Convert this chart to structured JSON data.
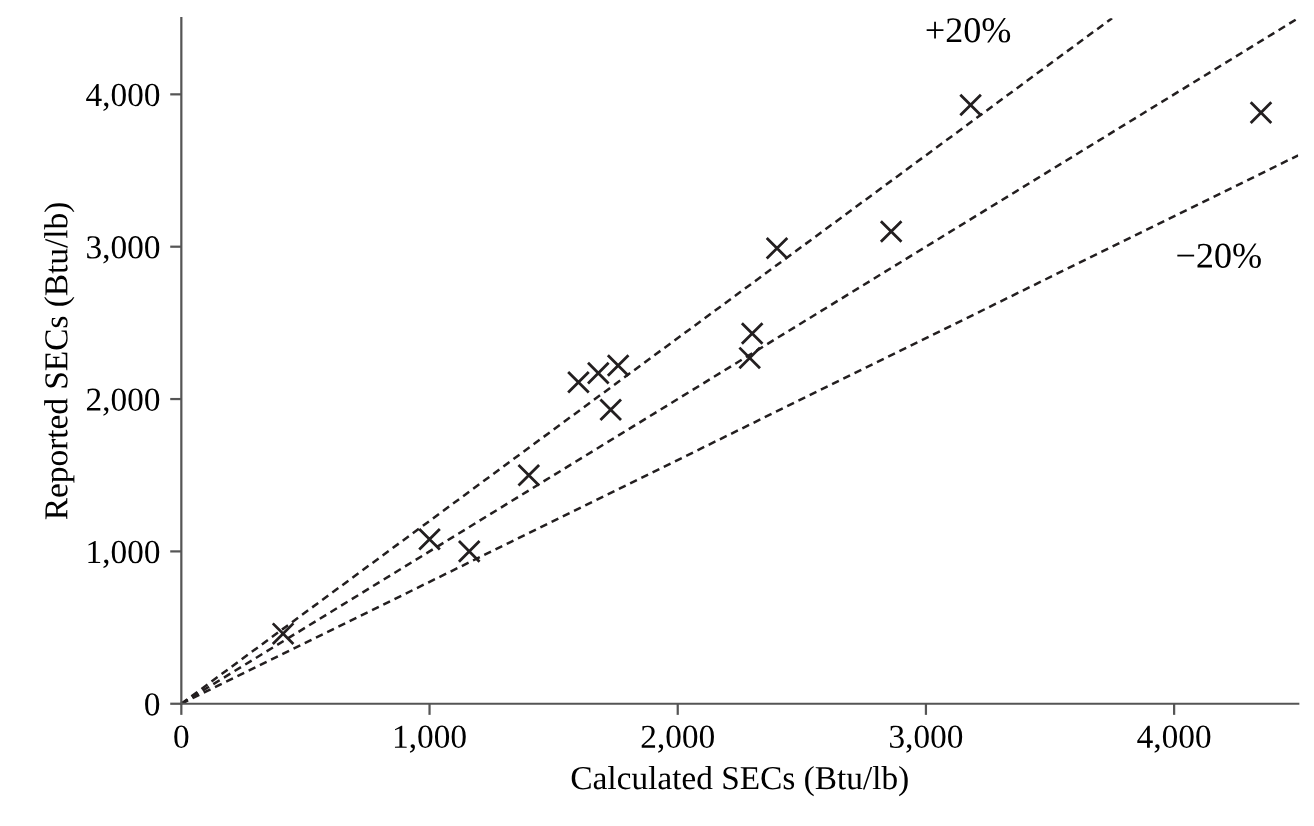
{
  "chart_data": {
    "type": "scatter",
    "xlabel": "Calculated SECs (Btu/lb)",
    "ylabel": "Reported SECs (Btu/lb)",
    "xlim": [
      0,
      4500
    ],
    "ylim": [
      0,
      4500
    ],
    "xticks": [
      {
        "value": 0,
        "label": "0"
      },
      {
        "value": 1000,
        "label": "1,000"
      },
      {
        "value": 2000,
        "label": "2,000"
      },
      {
        "value": 3000,
        "label": "3,000"
      },
      {
        "value": 4000,
        "label": "4,000"
      }
    ],
    "yticks": [
      {
        "value": 0,
        "label": "0"
      },
      {
        "value": 1000,
        "label": "1,000"
      },
      {
        "value": 2000,
        "label": "2,000"
      },
      {
        "value": 3000,
        "label": "3,000"
      },
      {
        "value": 4000,
        "label": "4,000"
      }
    ],
    "grid": false,
    "series": [
      {
        "marker": "cross",
        "color": "#231f20",
        "x": [
          410,
          1000,
          1160,
          1400,
          1600,
          1680,
          1760,
          1730,
          2300,
          2290,
          2400,
          2860,
          3180,
          4350
        ],
        "values": [
          460,
          1080,
          1000,
          1500,
          2110,
          2170,
          2220,
          1930,
          2430,
          2270,
          2990,
          3100,
          3930,
          3880
        ]
      },
      {
        "type": "line",
        "name": "+20%",
        "line_style": "dashed",
        "marker": "none",
        "color": "#231f20",
        "x": [
          0,
          3750
        ],
        "values": [
          0,
          4500
        ]
      },
      {
        "type": "line",
        "line_style": "dashed",
        "marker": "none",
        "color": "#231f20",
        "x": [
          0,
          4500
        ],
        "values": [
          0,
          4500
        ]
      },
      {
        "type": "line",
        "name": "−20%",
        "line_style": "dashed",
        "marker": "none",
        "color": "#231f20",
        "x": [
          0,
          4500
        ],
        "values": [
          0,
          3600
        ]
      }
    ]
  }
}
